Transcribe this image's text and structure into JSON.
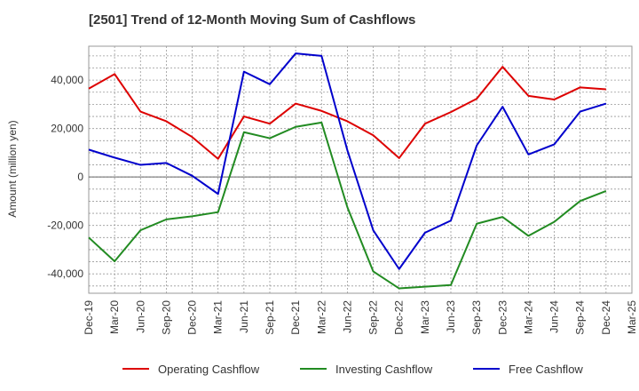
{
  "chart_data": {
    "type": "line",
    "title": "[2501]  Trend of 12-Month Moving Sum of Cashflows",
    "ylabel": "Amount (million yen)",
    "xlabel": "",
    "x": [
      "Dec-19",
      "Mar-20",
      "Jun-20",
      "Sep-20",
      "Dec-20",
      "Mar-21",
      "Jun-21",
      "Sep-21",
      "Dec-21",
      "Mar-22",
      "Jun-22",
      "Sep-22",
      "Dec-22",
      "Mar-23",
      "Jun-23",
      "Sep-23",
      "Dec-23",
      "Mar-24",
      "Jun-24",
      "Sep-24",
      "Dec-24"
    ],
    "x_tick_labels": [
      "Dec-19",
      "Mar-20",
      "Jun-20",
      "Sep-20",
      "Dec-20",
      "Mar-21",
      "Jun-21",
      "Sep-21",
      "Dec-21",
      "Mar-22",
      "Jun-22",
      "Sep-22",
      "Dec-22",
      "Mar-23",
      "Jun-23",
      "Sep-23",
      "Dec-23",
      "Mar-24",
      "Jun-24",
      "Sep-24",
      "Dec-24",
      "Mar-25"
    ],
    "y_ticks": [
      -40000,
      -20000,
      0,
      20000,
      40000
    ],
    "y_tick_labels": [
      "-40,000",
      "-20,000",
      "0",
      "20,000",
      "40,000"
    ],
    "ylim": [
      -48000,
      54000
    ],
    "grid": true,
    "legend_position": "bottom",
    "series": [
      {
        "name": "Operating Cashflow",
        "color": "#dd0000",
        "values": [
          36500,
          42500,
          27000,
          23000,
          16500,
          7500,
          25000,
          22000,
          30300,
          27300,
          23000,
          17200,
          7800,
          22000,
          26800,
          32300,
          45500,
          33500,
          32000,
          37000,
          36200
        ]
      },
      {
        "name": "Investing Cashflow",
        "color": "#228b22",
        "values": [
          -25000,
          -34800,
          -22000,
          -17500,
          -16200,
          -14500,
          18500,
          16000,
          20700,
          22500,
          -12500,
          -39000,
          -46000,
          -45300,
          -44600,
          -19300,
          -16500,
          -24300,
          -18500,
          -9900,
          -5800
        ]
      },
      {
        "name": "Free Cashflow",
        "color": "#0000cc",
        "values": [
          11300,
          8000,
          5000,
          5800,
          500,
          -7000,
          43500,
          38300,
          51000,
          50000,
          11000,
          -22000,
          -38000,
          -23000,
          -18000,
          13000,
          29000,
          9300,
          13500,
          27000,
          30300
        ]
      }
    ]
  }
}
